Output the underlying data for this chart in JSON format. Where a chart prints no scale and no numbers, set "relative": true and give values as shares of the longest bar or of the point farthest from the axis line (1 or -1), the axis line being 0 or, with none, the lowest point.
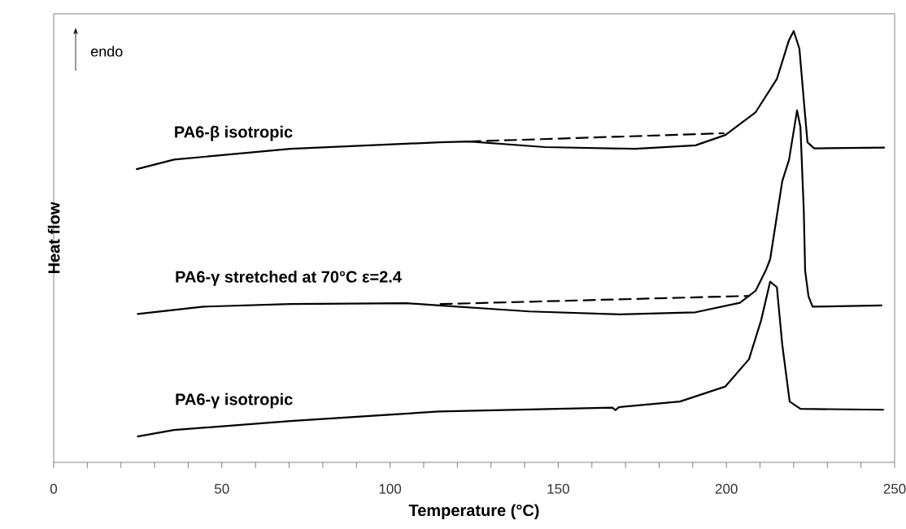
{
  "chart_data": {
    "type": "line",
    "relative": true,
    "xlabel": "Temperature (°C)",
    "ylabel": "Heat flow",
    "annotations": [
      "endo"
    ],
    "xlim": [
      0,
      250
    ],
    "xticks": [
      0,
      {
        "value": 10,
        "label": null
      },
      {
        "value": 20,
        "label": null
      },
      {
        "value": 30,
        "label": null
      },
      {
        "value": 40,
        "label": null
      },
      50,
      {
        "value": 60,
        "label": null
      },
      {
        "value": 70,
        "label": null
      },
      {
        "value": 80,
        "label": null
      },
      {
        "value": 90,
        "label": null
      },
      100,
      {
        "value": 110,
        "label": null
      },
      {
        "value": 120,
        "label": null
      },
      {
        "value": 130,
        "label": null
      },
      {
        "value": 140,
        "label": null
      },
      150,
      {
        "value": 160,
        "label": null
      },
      {
        "value": 170,
        "label": null
      },
      {
        "value": 180,
        "label": null
      },
      {
        "value": 190,
        "label": null
      },
      200,
      {
        "value": 210,
        "label": null
      },
      {
        "value": 220,
        "label": null
      },
      {
        "value": 230,
        "label": null
      },
      {
        "value": 240,
        "label": null
      },
      250
    ],
    "marker": "none",
    "series": [
      {
        "name": "PA6-β isotropic",
        "color": "#000000",
        "line_style": "solid",
        "x": [
          24.7,
          35.8,
          70.4,
          114.6,
          123.5,
          146,
          172.9,
          190.8,
          199.7,
          208.7,
          215,
          218.6,
          220,
          221.7,
          223,
          224.1,
          226.1,
          246.9
        ],
        "values": [
          0.68,
          0.702,
          0.727,
          0.742,
          0.744,
          0.731,
          0.727,
          0.735,
          0.759,
          0.812,
          0.889,
          0.979,
          1.0,
          0.959,
          0.84,
          0.742,
          0.728,
          0.73
        ]
      },
      {
        "color": "#000000",
        "line_style": "dashed",
        "x": [
          123.5,
          199.2
        ],
        "values": [
          0.744,
          0.763
        ]
      },
      {
        "name": "PA6-γ stretched at 70°C ε=2.4",
        "color": "#000000",
        "line_style": "solid",
        "x": [
          25,
          44.5,
          70.4,
          104.9,
          114.6,
          141.4,
          168.3,
          190.8,
          204,
          208.7,
          211.8,
          213,
          216.6,
          218.6,
          221,
          222,
          223,
          223.4,
          224.4,
          225.6,
          246.1
        ],
        "values": [
          0.344,
          0.361,
          0.367,
          0.369,
          0.364,
          0.35,
          0.343,
          0.348,
          0.37,
          0.398,
          0.447,
          0.471,
          0.652,
          0.701,
          0.816,
          0.777,
          0.583,
          0.444,
          0.385,
          0.361,
          0.364
        ]
      },
      {
        "color": "#000000",
        "line_style": "dashed",
        "x": [
          115,
          206.8
        ],
        "values": [
          0.367,
          0.386
        ]
      },
      {
        "name": "PA6-γ isotropic",
        "color": "#000000",
        "line_style": "solid",
        "x": [
          25,
          35.8,
          70.4,
          114.6,
          166.1,
          167,
          168,
          186.2,
          199.7,
          206.7,
          210.3,
          213,
          215,
          216.6,
          218.8,
          222,
          246.6
        ],
        "values": [
          0.06,
          0.075,
          0.096,
          0.118,
          0.127,
          0.121,
          0.128,
          0.141,
          0.176,
          0.239,
          0.329,
          0.419,
          0.406,
          0.273,
          0.141,
          0.124,
          0.122
        ]
      }
    ]
  }
}
